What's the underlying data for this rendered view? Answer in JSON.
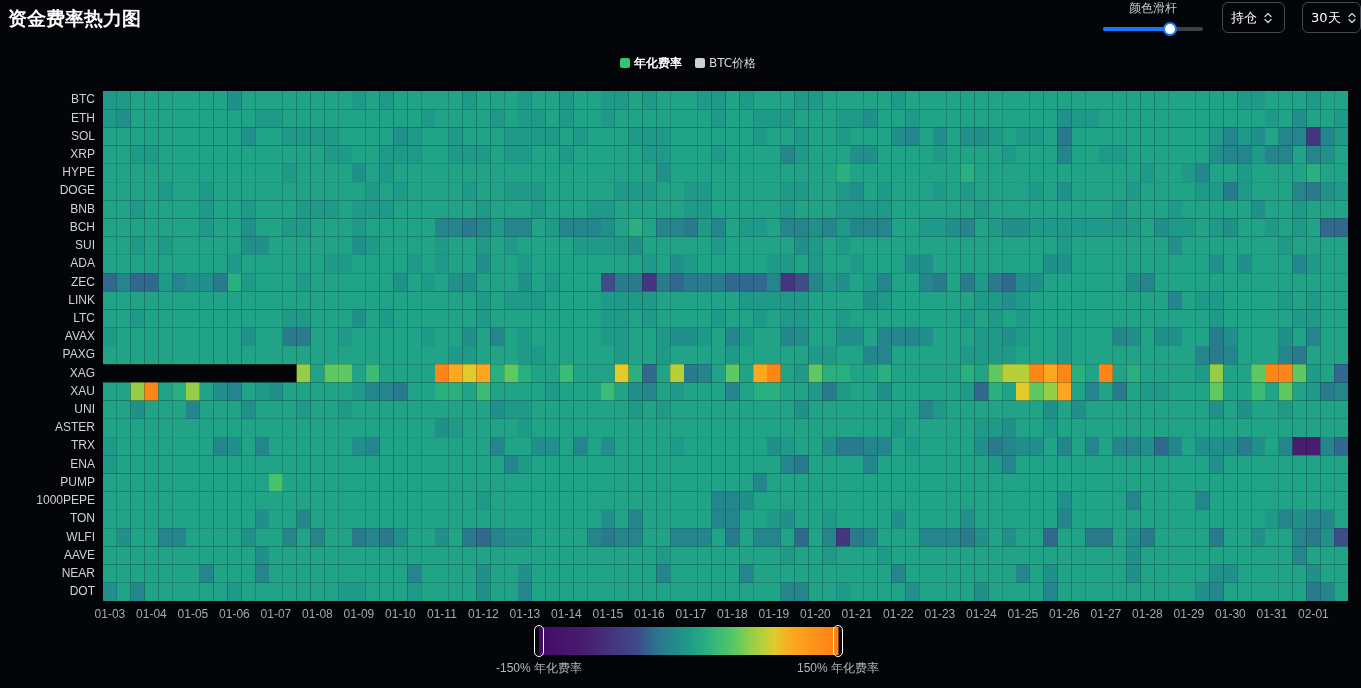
{
  "chart_data": {
    "type": "heatmap",
    "title": "资金费率热力图",
    "categories": [
      "01-03",
      null,
      null,
      "01-04",
      null,
      null,
      "01-05",
      null,
      null,
      "01-06",
      null,
      null,
      "01-07",
      null,
      null,
      "01-08",
      null,
      null,
      "01-09",
      null,
      null,
      "01-10",
      null,
      null,
      "01-11",
      null,
      null,
      "01-12",
      null,
      null,
      "01-13",
      null,
      null,
      "01-14",
      null,
      null,
      "01-15",
      null,
      null,
      "01-16",
      null,
      null,
      "01-17",
      null,
      null,
      "01-18",
      null,
      null,
      "01-19",
      null,
      null,
      "01-20",
      null,
      null,
      "01-21",
      null,
      null,
      "01-22",
      null,
      null,
      "01-23",
      null,
      null,
      "01-24",
      null,
      null,
      "01-25",
      null,
      null,
      "01-26",
      null,
      null,
      "01-27",
      null,
      null,
      "01-28",
      null,
      null,
      "01-29",
      null,
      null,
      "01-30",
      null,
      null,
      "01-31",
      null,
      null,
      "02-01",
      null,
      null
    ],
    "y_categories": [
      "BTC",
      "ETH",
      "SOL",
      "XRP",
      "HYPE",
      "DOGE",
      "BNB",
      "BCH",
      "SUI",
      "ADA",
      "ZEC",
      "LINK",
      "LTC",
      "AVAX",
      "PAXG",
      "XAG",
      "XAU",
      "UNI",
      "ASTER",
      "TRX",
      "ENA",
      "PUMP",
      "1000PEPE",
      "TON",
      "WLFI",
      "AAVE",
      "NEAR",
      "DOT"
    ],
    "cells": [
      [
        0,
        0,
        6,
        6,
        6,
        6,
        6,
        6,
        6,
        -8,
        6,
        6,
        6,
        6,
        6,
        6,
        6,
        6,
        0,
        6,
        0,
        6,
        6,
        6,
        6,
        6,
        0,
        6,
        6,
        6,
        0,
        6,
        6,
        0,
        6,
        6,
        0,
        0,
        6,
        0,
        6,
        6,
        6,
        0,
        0,
        6,
        0,
        6,
        6,
        6,
        0,
        0,
        6,
        6,
        6,
        6,
        6,
        0,
        6,
        6,
        6,
        6,
        6,
        6,
        6,
        6,
        6,
        6,
        6,
        6,
        6,
        6,
        6,
        6,
        6,
        6,
        6,
        6,
        6,
        6,
        6,
        6,
        0,
        0,
        6,
        6,
        6,
        0,
        6,
        6
      ],
      [
        0,
        -8,
        6,
        6,
        6,
        6,
        6,
        6,
        6,
        6,
        6,
        0,
        0,
        6,
        6,
        6,
        6,
        6,
        6,
        6,
        6,
        6,
        6,
        0,
        6,
        6,
        6,
        6,
        0,
        6,
        0,
        0,
        6,
        0,
        6,
        6,
        0,
        6,
        6,
        6,
        6,
        6,
        6,
        6,
        0,
        6,
        6,
        0,
        0,
        0,
        6,
        6,
        6,
        0,
        0,
        -8,
        6,
        6,
        0,
        6,
        6,
        6,
        6,
        6,
        6,
        6,
        6,
        6,
        6,
        -8,
        0,
        0,
        6,
        6,
        6,
        6,
        6,
        6,
        6,
        6,
        6,
        6,
        6,
        6,
        0,
        6,
        -8,
        6,
        6,
        0
      ],
      [
        6,
        6,
        6,
        6,
        6,
        6,
        6,
        6,
        6,
        6,
        -8,
        6,
        6,
        0,
        0,
        0,
        0,
        6,
        6,
        6,
        6,
        -8,
        0,
        6,
        6,
        0,
        6,
        6,
        6,
        0,
        0,
        0,
        0,
        6,
        0,
        6,
        6,
        6,
        0,
        0,
        0,
        6,
        6,
        6,
        6,
        6,
        6,
        0,
        6,
        6,
        0,
        6,
        6,
        0,
        6,
        6,
        6,
        -8,
        -18,
        6,
        -8,
        6,
        -8,
        -8,
        0,
        6,
        0,
        0,
        6,
        -28,
        6,
        6,
        6,
        6,
        6,
        6,
        6,
        6,
        6,
        6,
        0,
        -18,
        0,
        -8,
        6,
        -18,
        -18,
        -75,
        -18,
        0
      ],
      [
        6,
        6,
        0,
        0,
        6,
        6,
        6,
        6,
        6,
        6,
        6,
        6,
        6,
        6,
        6,
        6,
        0,
        0,
        6,
        6,
        0,
        0,
        0,
        6,
        6,
        0,
        0,
        0,
        6,
        0,
        0,
        6,
        6,
        0,
        6,
        6,
        6,
        6,
        6,
        0,
        0,
        6,
        6,
        6,
        0,
        6,
        6,
        6,
        6,
        -18,
        0,
        6,
        6,
        6,
        -8,
        -8,
        6,
        6,
        6,
        6,
        0,
        6,
        6,
        6,
        6,
        0,
        6,
        6,
        6,
        -18,
        6,
        6,
        0,
        0,
        6,
        6,
        6,
        6,
        6,
        6,
        -8,
        -18,
        -18,
        0,
        -18,
        -18,
        6,
        -18,
        -8,
        6
      ],
      [
        6,
        6,
        6,
        6,
        6,
        6,
        6,
        6,
        6,
        6,
        6,
        6,
        6,
        0,
        6,
        6,
        6,
        6,
        -8,
        6,
        0,
        6,
        6,
        6,
        6,
        6,
        6,
        6,
        6,
        6,
        6,
        6,
        6,
        6,
        6,
        6,
        6,
        6,
        6,
        6,
        -8,
        6,
        6,
        6,
        6,
        6,
        6,
        6,
        6,
        6,
        6,
        6,
        6,
        18,
        6,
        6,
        6,
        6,
        6,
        6,
        6,
        6,
        18,
        6,
        6,
        6,
        6,
        6,
        6,
        6,
        6,
        6,
        6,
        6,
        6,
        0,
        6,
        6,
        0,
        -18,
        6,
        6,
        0,
        6,
        6,
        6,
        6,
        18,
        6,
        6
      ],
      [
        6,
        6,
        6,
        6,
        0,
        6,
        6,
        0,
        6,
        6,
        6,
        6,
        6,
        6,
        6,
        6,
        6,
        6,
        6,
        0,
        6,
        0,
        6,
        6,
        6,
        6,
        0,
        6,
        6,
        0,
        0,
        0,
        6,
        6,
        6,
        6,
        6,
        0,
        0,
        0,
        6,
        6,
        0,
        0,
        6,
        6,
        6,
        6,
        6,
        0,
        0,
        6,
        6,
        0,
        -8,
        6,
        0,
        6,
        6,
        6,
        0,
        6,
        0,
        6,
        6,
        6,
        6,
        0,
        6,
        -8,
        6,
        6,
        6,
        6,
        0,
        6,
        6,
        6,
        6,
        0,
        0,
        -28,
        0,
        6,
        6,
        6,
        -18,
        -28,
        -8,
        0
      ],
      [
        6,
        6,
        0,
        6,
        6,
        6,
        6,
        0,
        6,
        6,
        0,
        6,
        6,
        6,
        0,
        0,
        0,
        6,
        0,
        0,
        0,
        6,
        6,
        6,
        6,
        6,
        6,
        0,
        6,
        6,
        6,
        0,
        6,
        6,
        6,
        0,
        0,
        6,
        6,
        6,
        6,
        6,
        0,
        0,
        6,
        6,
        6,
        6,
        6,
        0,
        6,
        6,
        6,
        0,
        0,
        0,
        0,
        6,
        6,
        6,
        6,
        6,
        6,
        0,
        6,
        6,
        6,
        6,
        6,
        6,
        6,
        6,
        6,
        0,
        6,
        6,
        6,
        0,
        6,
        6,
        6,
        6,
        6,
        -8,
        6,
        6,
        0,
        6,
        6,
        6
      ],
      [
        6,
        6,
        6,
        6,
        6,
        6,
        6,
        0,
        6,
        6,
        -8,
        6,
        6,
        0,
        0,
        6,
        6,
        6,
        0,
        6,
        6,
        6,
        6,
        6,
        -18,
        -18,
        -28,
        -18,
        0,
        -18,
        -18,
        6,
        0,
        -18,
        -18,
        -18,
        -8,
        6,
        18,
        6,
        -18,
        -18,
        -28,
        0,
        -18,
        6,
        0,
        0,
        6,
        -18,
        -18,
        -8,
        -18,
        0,
        -18,
        -18,
        -18,
        6,
        6,
        0,
        0,
        -8,
        -18,
        6,
        0,
        -8,
        -8,
        0,
        0,
        0,
        0,
        0,
        0,
        0,
        0,
        6,
        -8,
        0,
        0,
        6,
        0,
        -8,
        6,
        6,
        0,
        6,
        0,
        6,
        -38,
        -38
      ],
      [
        6,
        6,
        0,
        6,
        0,
        6,
        6,
        6,
        6,
        6,
        -8,
        -8,
        6,
        6,
        6,
        6,
        6,
        6,
        -8,
        0,
        6,
        6,
        6,
        6,
        0,
        6,
        6,
        0,
        6,
        0,
        6,
        6,
        6,
        6,
        0,
        0,
        0,
        0,
        -8,
        6,
        6,
        6,
        6,
        6,
        0,
        6,
        6,
        6,
        6,
        6,
        -8,
        0,
        6,
        0,
        6,
        6,
        6,
        6,
        6,
        6,
        6,
        6,
        6,
        6,
        6,
        6,
        6,
        6,
        6,
        0,
        6,
        6,
        6,
        6,
        6,
        6,
        6,
        -8,
        6,
        6,
        6,
        6,
        6,
        6,
        6,
        0,
        6,
        6,
        6,
        6
      ],
      [
        6,
        6,
        6,
        6,
        6,
        6,
        6,
        6,
        6,
        0,
        6,
        6,
        6,
        6,
        6,
        6,
        0,
        0,
        6,
        6,
        6,
        6,
        0,
        6,
        0,
        6,
        6,
        -8,
        6,
        6,
        0,
        6,
        6,
        6,
        6,
        6,
        6,
        6,
        6,
        0,
        6,
        -8,
        0,
        6,
        6,
        6,
        6,
        6,
        0,
        0,
        6,
        0,
        6,
        6,
        0,
        6,
        6,
        6,
        -8,
        -8,
        6,
        6,
        6,
        6,
        6,
        6,
        6,
        6,
        -8,
        -8,
        6,
        6,
        6,
        6,
        6,
        6,
        6,
        6,
        6,
        6,
        -8,
        6,
        -8,
        6,
        6,
        6,
        -18,
        0,
        6,
        6
      ],
      [
        -38,
        -18,
        -38,
        -38,
        0,
        -18,
        -8,
        -8,
        -28,
        18,
        0,
        6,
        6,
        6,
        0,
        6,
        6,
        6,
        6,
        6,
        6,
        -8,
        6,
        0,
        6,
        -8,
        -8,
        6,
        6,
        6,
        -8,
        6,
        0,
        6,
        6,
        6,
        -50,
        -28,
        -28,
        -75,
        -28,
        -38,
        -28,
        -28,
        -28,
        -38,
        -38,
        -38,
        -18,
        -75,
        -50,
        -18,
        0,
        -8,
        6,
        0,
        -18,
        6,
        6,
        -18,
        -28,
        6,
        -28,
        0,
        -28,
        -38,
        -8,
        -8,
        6,
        6,
        6,
        6,
        6,
        6,
        -8,
        -18,
        6,
        6,
        6,
        6,
        6,
        6,
        6,
        6,
        6,
        6,
        6,
        6,
        6,
        6
      ],
      [
        6,
        6,
        6,
        6,
        6,
        6,
        6,
        6,
        6,
        6,
        6,
        6,
        6,
        6,
        6,
        6,
        6,
        6,
        6,
        6,
        6,
        6,
        6,
        6,
        6,
        6,
        6,
        0,
        6,
        0,
        0,
        0,
        6,
        6,
        6,
        6,
        0,
        0,
        0,
        0,
        6,
        6,
        6,
        6,
        6,
        6,
        0,
        0,
        0,
        0,
        0,
        6,
        6,
        6,
        6,
        -8,
        0,
        6,
        6,
        6,
        6,
        6,
        6,
        0,
        0,
        -8,
        0,
        6,
        6,
        6,
        6,
        6,
        6,
        6,
        6,
        6,
        6,
        -18,
        6,
        0,
        0,
        6,
        6,
        6,
        6,
        0,
        6,
        0,
        6,
        6
      ],
      [
        6,
        6,
        0,
        6,
        6,
        6,
        6,
        6,
        6,
        6,
        6,
        6,
        6,
        0,
        0,
        6,
        6,
        6,
        -8,
        6,
        0,
        6,
        6,
        6,
        6,
        6,
        6,
        0,
        6,
        6,
        6,
        6,
        6,
        6,
        6,
        6,
        0,
        0,
        6,
        0,
        6,
        6,
        6,
        6,
        0,
        6,
        6,
        0,
        6,
        0,
        0,
        6,
        6,
        0,
        6,
        6,
        6,
        6,
        6,
        6,
        6,
        6,
        0,
        6,
        0,
        6,
        0,
        6,
        6,
        6,
        6,
        6,
        6,
        6,
        6,
        6,
        6,
        6,
        6,
        6,
        0,
        6,
        6,
        6,
        6,
        6,
        0,
        0,
        6,
        6
      ],
      [
        0,
        6,
        6,
        6,
        6,
        6,
        6,
        6,
        6,
        6,
        -8,
        6,
        6,
        -28,
        -28,
        6,
        6,
        0,
        6,
        6,
        6,
        6,
        6,
        0,
        6,
        6,
        -8,
        6,
        -18,
        6,
        0,
        6,
        6,
        6,
        6,
        6,
        0,
        0,
        6,
        6,
        0,
        -8,
        -8,
        0,
        6,
        -18,
        0,
        6,
        6,
        -18,
        -8,
        6,
        6,
        -8,
        -8,
        6,
        -18,
        -18,
        -18,
        -8,
        6,
        6,
        6,
        0,
        0,
        -8,
        0,
        6,
        6,
        0,
        6,
        6,
        6,
        -18,
        -8,
        6,
        -8,
        -8,
        6,
        6,
        -28,
        -8,
        6,
        6,
        6,
        -8,
        6,
        -18,
        6,
        6
      ],
      [
        6,
        6,
        6,
        6,
        6,
        6,
        6,
        6,
        6,
        6,
        6,
        6,
        6,
        6,
        6,
        6,
        6,
        6,
        6,
        6,
        6,
        6,
        6,
        6,
        6,
        0,
        0,
        6,
        6,
        6,
        0,
        0,
        6,
        6,
        6,
        6,
        6,
        0,
        6,
        6,
        0,
        6,
        6,
        6,
        6,
        0,
        6,
        6,
        6,
        6,
        6,
        0,
        0,
        6,
        6,
        -18,
        -18,
        6,
        6,
        6,
        6,
        6,
        0,
        0,
        0,
        0,
        6,
        6,
        6,
        0,
        6,
        6,
        6,
        6,
        6,
        6,
        6,
        6,
        6,
        -18,
        -28,
        -18,
        6,
        6,
        6,
        -18,
        -28,
        6,
        6,
        6
      ],
      [
        null,
        null,
        null,
        null,
        null,
        null,
        null,
        null,
        null,
        null,
        null,
        null,
        null,
        null,
        63,
        6,
        48,
        48,
        6,
        30,
        6,
        6,
        6,
        6,
        140,
        105,
        87,
        105,
        18,
        48,
        18,
        6,
        6,
        30,
        6,
        6,
        6,
        87,
        18,
        -38,
        6,
        75,
        -28,
        -18,
        6,
        48,
        6,
        105,
        140,
        6,
        0,
        48,
        18,
        18,
        6,
        6,
        18,
        6,
        6,
        6,
        6,
        6,
        18,
        6,
        48,
        75,
        75,
        140,
        105,
        140,
        18,
        6,
        140,
        6,
        18,
        6,
        6,
        6,
        6,
        0,
        63,
        6,
        6,
        48,
        140,
        140,
        48,
        0,
        6,
        -38
      ],
      [
        6,
        6,
        63,
        140,
        6,
        18,
        63,
        6,
        -8,
        -18,
        6,
        0,
        -8,
        6,
        6,
        6,
        6,
        6,
        0,
        -18,
        -18,
        -28,
        6,
        6,
        18,
        18,
        6,
        30,
        6,
        6,
        6,
        6,
        0,
        6,
        6,
        6,
        30,
        6,
        -8,
        -18,
        6,
        0,
        6,
        6,
        6,
        -18,
        6,
        18,
        18,
        6,
        6,
        0,
        -28,
        0,
        6,
        6,
        -8,
        6,
        6,
        6,
        6,
        6,
        0,
        -38,
        18,
        6,
        87,
        48,
        63,
        105,
        6,
        -18,
        6,
        -28,
        6,
        0,
        0,
        6,
        6,
        6,
        48,
        6,
        6,
        30,
        6,
        48,
        6,
        0,
        -28,
        -18
      ],
      [
        6,
        6,
        -8,
        6,
        6,
        6,
        -18,
        6,
        6,
        6,
        -8,
        6,
        6,
        6,
        0,
        6,
        6,
        0,
        6,
        6,
        6,
        6,
        6,
        6,
        6,
        6,
        6,
        6,
        -8,
        0,
        0,
        6,
        6,
        6,
        6,
        6,
        6,
        6,
        0,
        6,
        0,
        6,
        6,
        6,
        6,
        6,
        6,
        6,
        6,
        6,
        -8,
        6,
        6,
        6,
        6,
        6,
        6,
        6,
        6,
        -18,
        0,
        6,
        6,
        6,
        6,
        6,
        6,
        6,
        -8,
        6,
        -8,
        6,
        6,
        6,
        6,
        6,
        6,
        6,
        6,
        6,
        -8,
        6,
        -8,
        6,
        6,
        0,
        6,
        6,
        6,
        6
      ],
      [
        6,
        6,
        6,
        6,
        6,
        6,
        6,
        6,
        6,
        6,
        6,
        6,
        6,
        6,
        6,
        6,
        6,
        6,
        6,
        6,
        6,
        6,
        6,
        6,
        -8,
        0,
        6,
        6,
        6,
        6,
        0,
        6,
        6,
        6,
        6,
        6,
        6,
        6,
        6,
        6,
        6,
        6,
        6,
        6,
        6,
        6,
        6,
        6,
        6,
        6,
        6,
        6,
        6,
        6,
        6,
        6,
        6,
        0,
        6,
        6,
        6,
        6,
        6,
        0,
        0,
        -8,
        6,
        6,
        0,
        6,
        6,
        6,
        6,
        6,
        6,
        6,
        6,
        6,
        6,
        6,
        6,
        6,
        6,
        6,
        6,
        6,
        6,
        6,
        6,
        6
      ],
      [
        0,
        6,
        6,
        6,
        6,
        6,
        6,
        6,
        -18,
        -8,
        6,
        -18,
        6,
        6,
        6,
        6,
        6,
        6,
        -8,
        -18,
        6,
        6,
        6,
        6,
        6,
        6,
        6,
        6,
        -18,
        6,
        6,
        -8,
        -8,
        6,
        -18,
        6,
        -8,
        6,
        6,
        6,
        6,
        0,
        6,
        6,
        6,
        6,
        6,
        6,
        -8,
        0,
        6,
        6,
        -8,
        -28,
        -28,
        -18,
        -18,
        6,
        0,
        6,
        6,
        6,
        6,
        -8,
        -28,
        -18,
        -8,
        -8,
        6,
        -18,
        6,
        -18,
        6,
        -18,
        -18,
        -8,
        -38,
        -18,
        6,
        -8,
        -8,
        -8,
        -28,
        -8,
        6,
        -18,
        -105,
        -105,
        -18,
        -38
      ],
      [
        0,
        6,
        6,
        6,
        6,
        6,
        6,
        6,
        6,
        6,
        6,
        6,
        6,
        6,
        6,
        6,
        6,
        6,
        6,
        6,
        6,
        6,
        6,
        6,
        6,
        6,
        6,
        6,
        6,
        -18,
        0,
        6,
        6,
        6,
        6,
        6,
        6,
        6,
        6,
        6,
        6,
        6,
        6,
        6,
        6,
        6,
        6,
        6,
        6,
        -18,
        -28,
        6,
        6,
        6,
        6,
        -18,
        6,
        6,
        6,
        6,
        6,
        6,
        6,
        6,
        0,
        -18,
        6,
        6,
        6,
        6,
        6,
        6,
        6,
        6,
        6,
        6,
        6,
        6,
        6,
        6,
        -8,
        6,
        6,
        6,
        6,
        6,
        6,
        6,
        6,
        6
      ],
      [
        6,
        6,
        6,
        6,
        6,
        6,
        6,
        6,
        6,
        6,
        6,
        6,
        38,
        6,
        6,
        6,
        6,
        6,
        6,
        6,
        6,
        6,
        6,
        6,
        6,
        6,
        6,
        6,
        6,
        6,
        6,
        6,
        6,
        6,
        6,
        6,
        6,
        6,
        6,
        6,
        6,
        6,
        6,
        6,
        6,
        6,
        6,
        -18,
        6,
        6,
        6,
        6,
        6,
        6,
        6,
        6,
        6,
        6,
        6,
        6,
        6,
        6,
        6,
        6,
        6,
        6,
        6,
        6,
        6,
        6,
        6,
        6,
        6,
        6,
        6,
        6,
        6,
        6,
        6,
        6,
        6,
        6,
        6,
        6,
        6,
        6,
        6,
        6,
        6,
        6
      ],
      [
        6,
        6,
        6,
        6,
        6,
        6,
        6,
        6,
        6,
        6,
        6,
        6,
        6,
        6,
        6,
        6,
        6,
        6,
        6,
        6,
        6,
        6,
        6,
        6,
        6,
        6,
        6,
        0,
        6,
        6,
        6,
        6,
        6,
        6,
        6,
        6,
        6,
        6,
        6,
        6,
        6,
        6,
        6,
        6,
        -18,
        -18,
        -8,
        6,
        6,
        6,
        6,
        6,
        6,
        6,
        6,
        6,
        6,
        6,
        6,
        6,
        6,
        6,
        6,
        6,
        6,
        6,
        6,
        6,
        6,
        -8,
        6,
        6,
        6,
        6,
        -18,
        6,
        6,
        6,
        6,
        -18,
        6,
        6,
        6,
        6,
        6,
        6,
        6,
        6,
        6,
        6
      ],
      [
        6,
        6,
        6,
        6,
        6,
        6,
        6,
        6,
        6,
        6,
        6,
        -8,
        6,
        6,
        -18,
        6,
        6,
        6,
        6,
        6,
        6,
        6,
        6,
        6,
        6,
        6,
        6,
        6,
        6,
        6,
        6,
        6,
        6,
        6,
        6,
        6,
        -8,
        6,
        -18,
        6,
        6,
        6,
        6,
        6,
        -18,
        -18,
        6,
        6,
        0,
        -8,
        6,
        6,
        0,
        6,
        6,
        6,
        6,
        -8,
        6,
        6,
        6,
        6,
        -8,
        6,
        6,
        6,
        6,
        6,
        6,
        -18,
        6,
        6,
        6,
        6,
        6,
        6,
        6,
        6,
        6,
        6,
        6,
        6,
        6,
        6,
        0,
        -18,
        -8,
        -18,
        -18,
        6
      ],
      [
        6,
        -8,
        6,
        6,
        -18,
        -18,
        6,
        6,
        6,
        6,
        -8,
        6,
        6,
        -18,
        6,
        -18,
        6,
        6,
        -28,
        -18,
        -28,
        -8,
        6,
        6,
        -8,
        6,
        -28,
        -38,
        -18,
        -8,
        -8,
        6,
        6,
        6,
        6,
        -18,
        -28,
        -18,
        -18,
        6,
        6,
        -18,
        -18,
        -18,
        6,
        -28,
        6,
        -18,
        -18,
        6,
        -38,
        6,
        -18,
        -75,
        -28,
        -18,
        6,
        6,
        6,
        -18,
        -18,
        -18,
        -28,
        -8,
        6,
        -8,
        6,
        6,
        -38,
        6,
        6,
        -28,
        -28,
        6,
        -8,
        -28,
        6,
        6,
        6,
        6,
        -28,
        6,
        6,
        -8,
        6,
        6,
        -18,
        -28,
        -8,
        -50
      ],
      [
        6,
        6,
        6,
        6,
        6,
        6,
        6,
        6,
        6,
        6,
        6,
        -8,
        6,
        6,
        6,
        6,
        6,
        6,
        6,
        6,
        6,
        6,
        6,
        6,
        6,
        6,
        6,
        6,
        6,
        6,
        6,
        6,
        6,
        6,
        6,
        6,
        6,
        6,
        6,
        6,
        0,
        6,
        6,
        6,
        6,
        6,
        6,
        6,
        6,
        0,
        6,
        6,
        0,
        6,
        6,
        6,
        0,
        6,
        6,
        6,
        6,
        6,
        6,
        6,
        6,
        6,
        6,
        6,
        6,
        6,
        6,
        6,
        6,
        6,
        -8,
        6,
        6,
        6,
        6,
        6,
        6,
        6,
        6,
        6,
        6,
        6,
        -18,
        6,
        6,
        6
      ],
      [
        6,
        6,
        6,
        6,
        6,
        6,
        6,
        -18,
        6,
        6,
        6,
        -18,
        6,
        6,
        6,
        6,
        6,
        6,
        6,
        6,
        6,
        6,
        -18,
        6,
        6,
        6,
        6,
        -8,
        6,
        6,
        -8,
        6,
        6,
        6,
        6,
        6,
        6,
        6,
        6,
        6,
        -18,
        6,
        6,
        6,
        6,
        6,
        -18,
        6,
        6,
        6,
        6,
        6,
        6,
        6,
        6,
        6,
        6,
        -18,
        6,
        6,
        6,
        6,
        6,
        6,
        6,
        6,
        -18,
        6,
        -8,
        6,
        6,
        6,
        6,
        6,
        -8,
        6,
        6,
        6,
        6,
        6,
        -8,
        -8,
        6,
        6,
        6,
        6,
        6,
        -8,
        6,
        6
      ],
      [
        -8,
        6,
        -18,
        6,
        6,
        6,
        6,
        6,
        6,
        0,
        6,
        6,
        6,
        6,
        6,
        6,
        6,
        0,
        0,
        6,
        6,
        6,
        0,
        6,
        6,
        6,
        6,
        -8,
        6,
        6,
        -18,
        6,
        6,
        6,
        6,
        6,
        6,
        6,
        6,
        6,
        6,
        6,
        6,
        6,
        6,
        6,
        6,
        6,
        6,
        -18,
        -18,
        6,
        6,
        0,
        6,
        6,
        6,
        6,
        -8,
        6,
        6,
        6,
        6,
        -8,
        6,
        6,
        6,
        6,
        -18,
        6,
        6,
        6,
        6,
        6,
        6,
        6,
        6,
        6,
        6,
        -8,
        -18,
        6,
        6,
        6,
        6,
        6,
        6,
        -28,
        -18,
        6
      ]
    ],
    "clim": [
      -150,
      150
    ],
    "cticks": [
      {
        "value": -150,
        "label": "-150% 年化费率"
      },
      {
        "value": 150,
        "label": "150% 年化费率"
      }
    ],
    "clabel": "年化费率",
    "annotations": [
      "BTC价格",
      "颜色滑杆",
      "持仓",
      "30天"
    ]
  }
}
